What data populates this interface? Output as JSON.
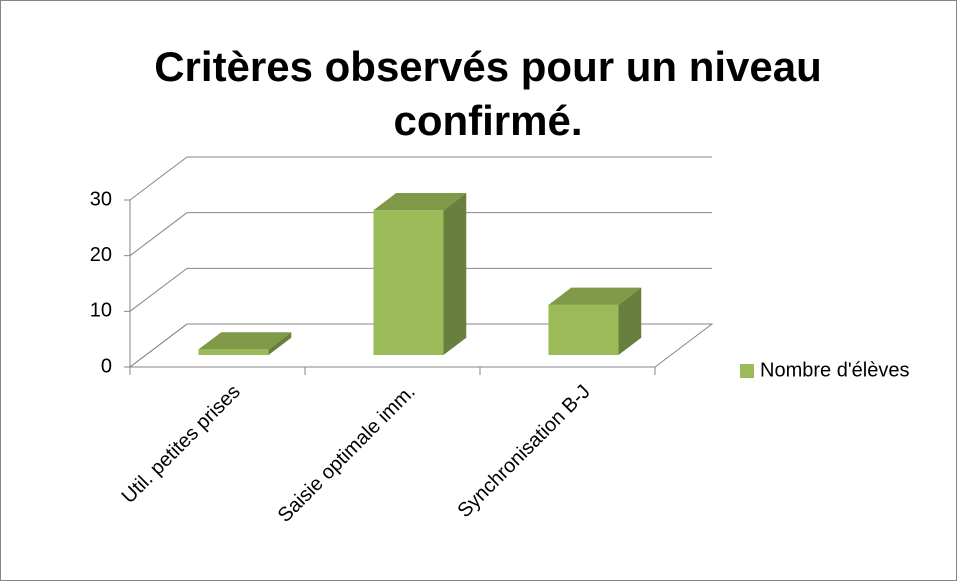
{
  "chart_data": {
    "type": "bar",
    "title": "Critères observés pour un niveau confirmé.",
    "categories": [
      "Util. petites prises",
      "Saisie optimale imm.",
      "Synchronisation B-J"
    ],
    "series": [
      {
        "name": "Nombre d'élèves",
        "color": "#9bbb59",
        "values": [
          1,
          26,
          9
        ]
      }
    ],
    "ylim": [
      0,
      30
    ],
    "yticks": [
      0,
      10,
      20,
      30
    ],
    "grid": true,
    "legend": "right"
  }
}
